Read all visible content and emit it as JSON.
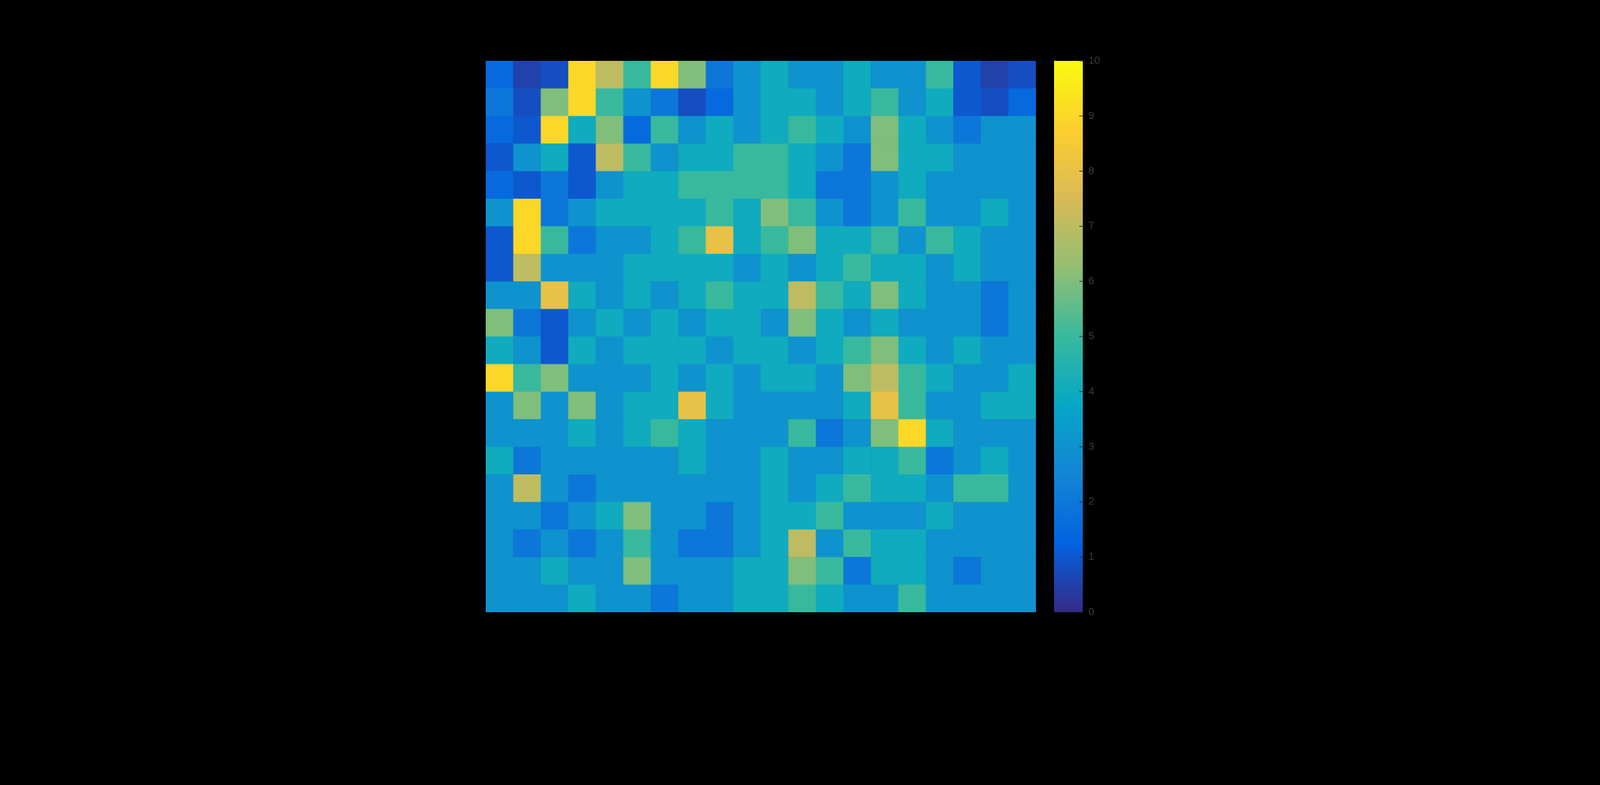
{
  "chart_data": {
    "type": "heatmap",
    "xlim": [
      0,
      20
    ],
    "ylim": [
      0,
      20
    ],
    "tick_labels": false,
    "cells": [
      [
        1.5,
        0.5,
        0.8,
        9,
        7,
        5,
        9,
        6,
        2,
        3,
        4,
        3,
        3,
        4,
        3,
        3,
        5,
        1,
        0.5,
        0.8
      ],
      [
        2,
        0.8,
        6,
        9,
        5,
        3,
        2,
        0.8,
        1.5,
        3,
        4,
        4,
        3,
        4,
        5,
        3,
        4,
        1,
        0.8,
        1.5
      ],
      [
        1.5,
        1,
        9,
        4,
        6,
        1.5,
        5,
        3,
        4,
        3,
        4,
        5,
        4,
        3,
        6,
        4,
        3,
        2,
        3,
        3
      ],
      [
        1,
        3,
        4,
        1,
        7,
        5,
        3,
        4,
        4,
        5,
        5,
        4,
        3,
        2,
        6,
        4,
        4,
        3,
        3,
        3
      ],
      [
        1.5,
        1,
        2,
        1,
        3,
        4,
        4,
        5,
        5,
        5,
        5,
        4,
        2,
        2,
        3,
        4,
        3,
        3,
        3,
        3
      ],
      [
        3,
        9,
        2,
        3,
        4,
        4,
        4,
        4,
        5,
        4,
        6,
        5,
        3,
        2,
        3,
        5,
        3,
        3,
        4,
        3
      ],
      [
        1,
        9,
        5,
        2,
        3,
        3,
        4,
        5,
        8,
        4,
        5,
        6,
        4,
        4,
        5,
        3,
        5,
        4,
        3,
        3
      ],
      [
        1,
        7,
        3,
        3,
        3,
        4,
        4,
        4,
        4,
        3,
        4,
        3,
        4,
        5,
        4,
        4,
        3,
        4,
        3,
        3
      ],
      [
        3,
        3,
        8,
        4,
        3,
        4,
        3,
        4,
        5,
        4,
        4,
        7,
        5,
        4,
        6,
        4,
        3,
        3,
        2,
        3
      ],
      [
        6,
        2,
        1,
        3,
        4,
        3,
        4,
        3,
        4,
        4,
        3,
        6,
        4,
        3,
        4,
        3,
        3,
        3,
        2,
        3
      ],
      [
        4,
        3,
        1,
        4,
        3,
        4,
        4,
        4,
        3,
        4,
        4,
        3,
        4,
        5,
        6,
        4,
        3,
        4,
        3,
        3
      ],
      [
        9,
        5,
        6,
        3,
        3,
        3,
        4,
        3,
        4,
        3,
        4,
        4,
        3,
        6,
        7,
        5,
        4,
        3,
        3,
        4
      ],
      [
        3,
        6,
        3,
        6,
        3,
        4,
        4,
        8,
        4,
        3,
        3,
        3,
        3,
        4,
        8,
        5,
        3,
        3,
        4,
        4
      ],
      [
        3,
        3,
        3,
        4,
        3,
        4,
        5,
        4,
        3,
        3,
        3,
        5,
        2,
        3,
        6,
        9,
        4,
        3,
        3,
        3
      ],
      [
        4,
        2,
        3,
        3,
        3,
        3,
        3,
        4,
        3,
        3,
        4,
        3,
        3,
        4,
        4,
        5,
        2,
        3,
        4,
        3
      ],
      [
        3,
        7,
        3,
        2,
        3,
        3,
        3,
        3,
        3,
        3,
        4,
        3,
        4,
        5,
        4,
        4,
        3,
        5,
        5,
        3
      ],
      [
        3,
        3,
        2,
        3,
        4,
        6,
        3,
        3,
        2,
        3,
        4,
        4,
        5,
        3,
        3,
        3,
        4,
        3,
        3,
        3
      ],
      [
        3,
        2,
        3,
        2,
        3,
        5,
        3,
        2,
        2,
        3,
        4,
        7,
        3,
        5,
        4,
        4,
        3,
        3,
        3,
        3
      ],
      [
        3,
        3,
        4,
        3,
        3,
        6,
        3,
        3,
        3,
        4,
        4,
        6,
        5,
        2,
        4,
        4,
        3,
        2,
        3,
        3
      ],
      [
        3,
        3,
        3,
        4,
        3,
        3,
        2,
        3,
        3,
        4,
        4,
        5,
        4,
        3,
        3,
        5,
        3,
        3,
        3,
        3
      ]
    ],
    "colorbar": {
      "range": [
        0,
        10
      ],
      "ticks": [
        0,
        1,
        2,
        3,
        4,
        5,
        6,
        7,
        8,
        9,
        10
      ]
    }
  }
}
